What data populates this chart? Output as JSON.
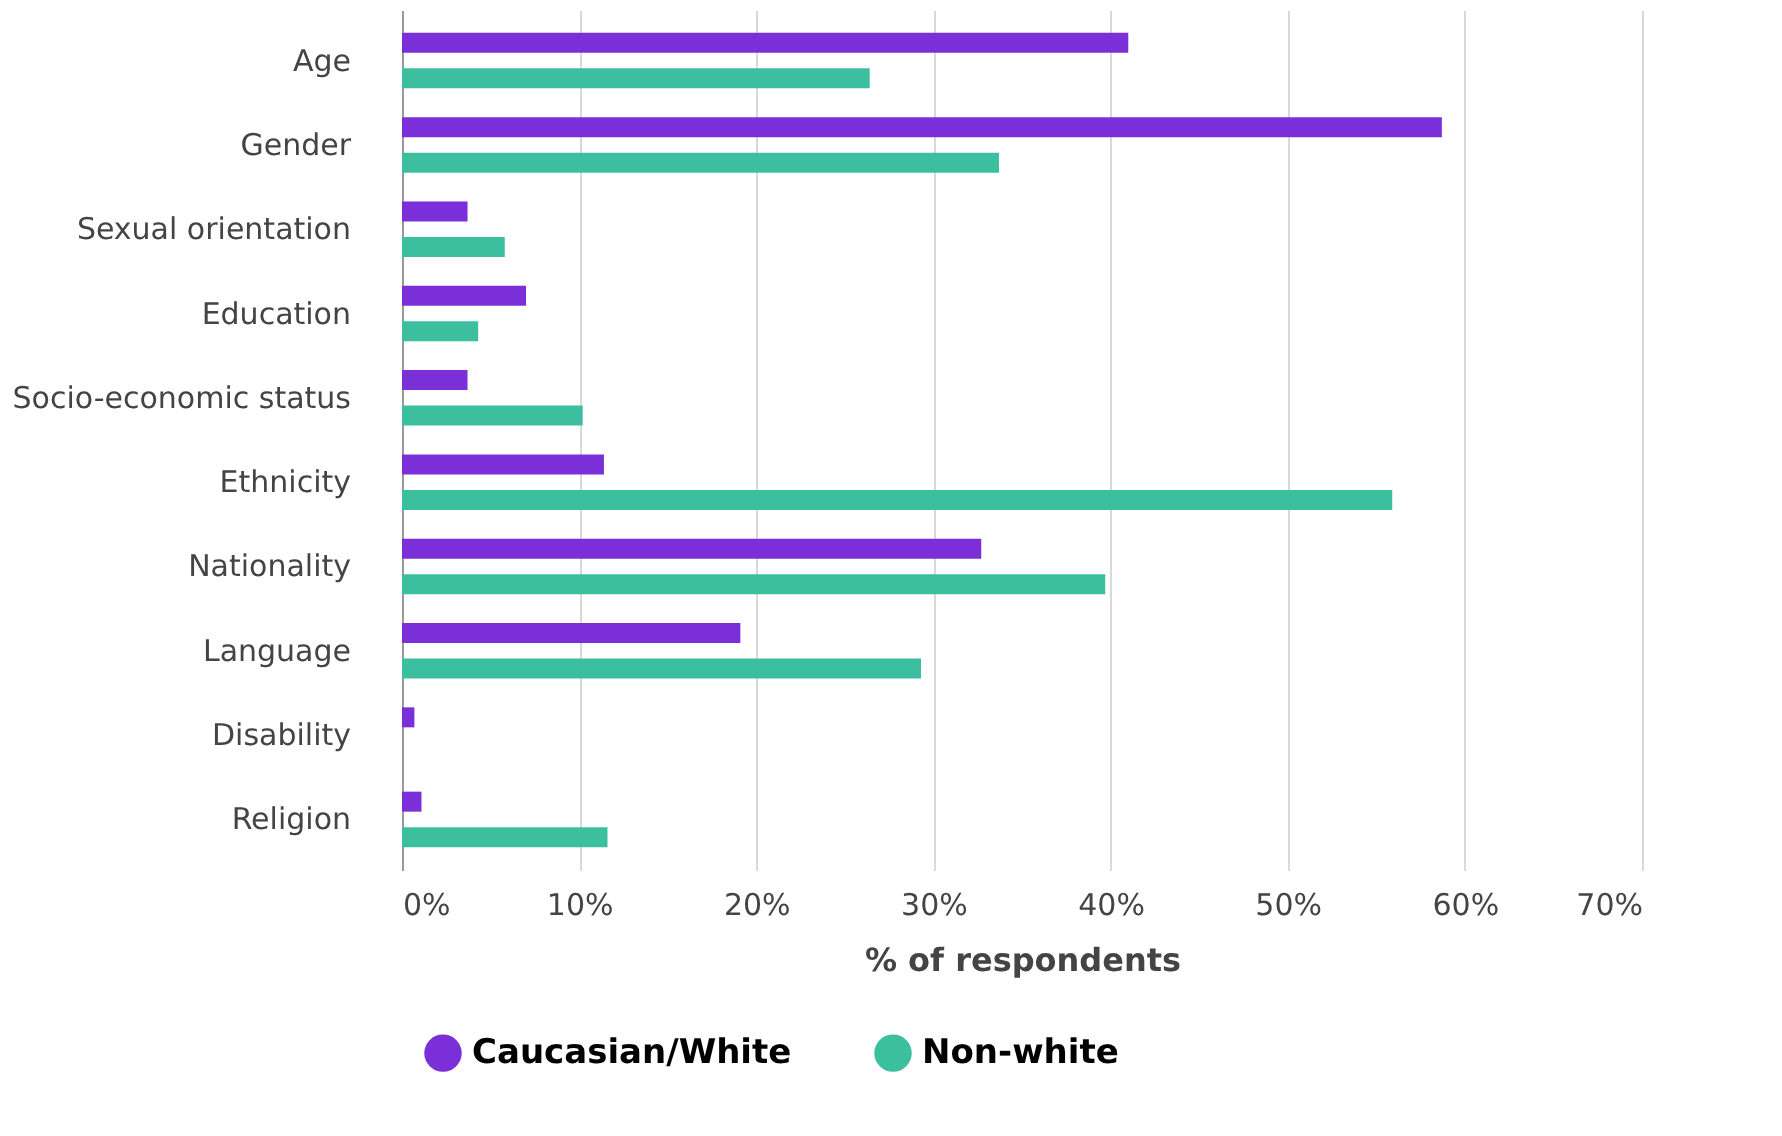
{
  "chart_data": {
    "type": "bar",
    "orientation": "horizontal",
    "xlabel": "% of respondents",
    "categories": [
      "Age",
      "Gender",
      "Sexual orientation",
      "Education",
      "Socio-economic status",
      "Ethnicity",
      "Nationality",
      "Language",
      "Disability",
      "Religion"
    ],
    "series": [
      {
        "name": "Caucasian/White",
        "color": "#7b2fd8",
        "values": [
          41.0,
          58.7,
          3.7,
          7.0,
          3.7,
          11.4,
          32.7,
          19.1,
          0.7,
          1.1
        ]
      },
      {
        "name": "Non-white",
        "color": "#3cbf9f",
        "values": [
          26.4,
          33.7,
          5.8,
          4.3,
          10.2,
          55.9,
          39.7,
          29.3,
          0,
          11.6
        ]
      }
    ],
    "xlim": [
      0,
      70
    ],
    "xticks": [
      {
        "value": 0,
        "label": "0%"
      },
      {
        "value": 10,
        "label": "10%"
      },
      {
        "value": 20,
        "label": "20%"
      },
      {
        "value": 30,
        "label": "30%"
      },
      {
        "value": 40,
        "label": "40%"
      },
      {
        "value": 50,
        "label": "50%"
      },
      {
        "value": 60,
        "label": "60%"
      },
      {
        "value": 70,
        "label": "70%"
      }
    ],
    "grid": "x",
    "legend": "bottom"
  }
}
